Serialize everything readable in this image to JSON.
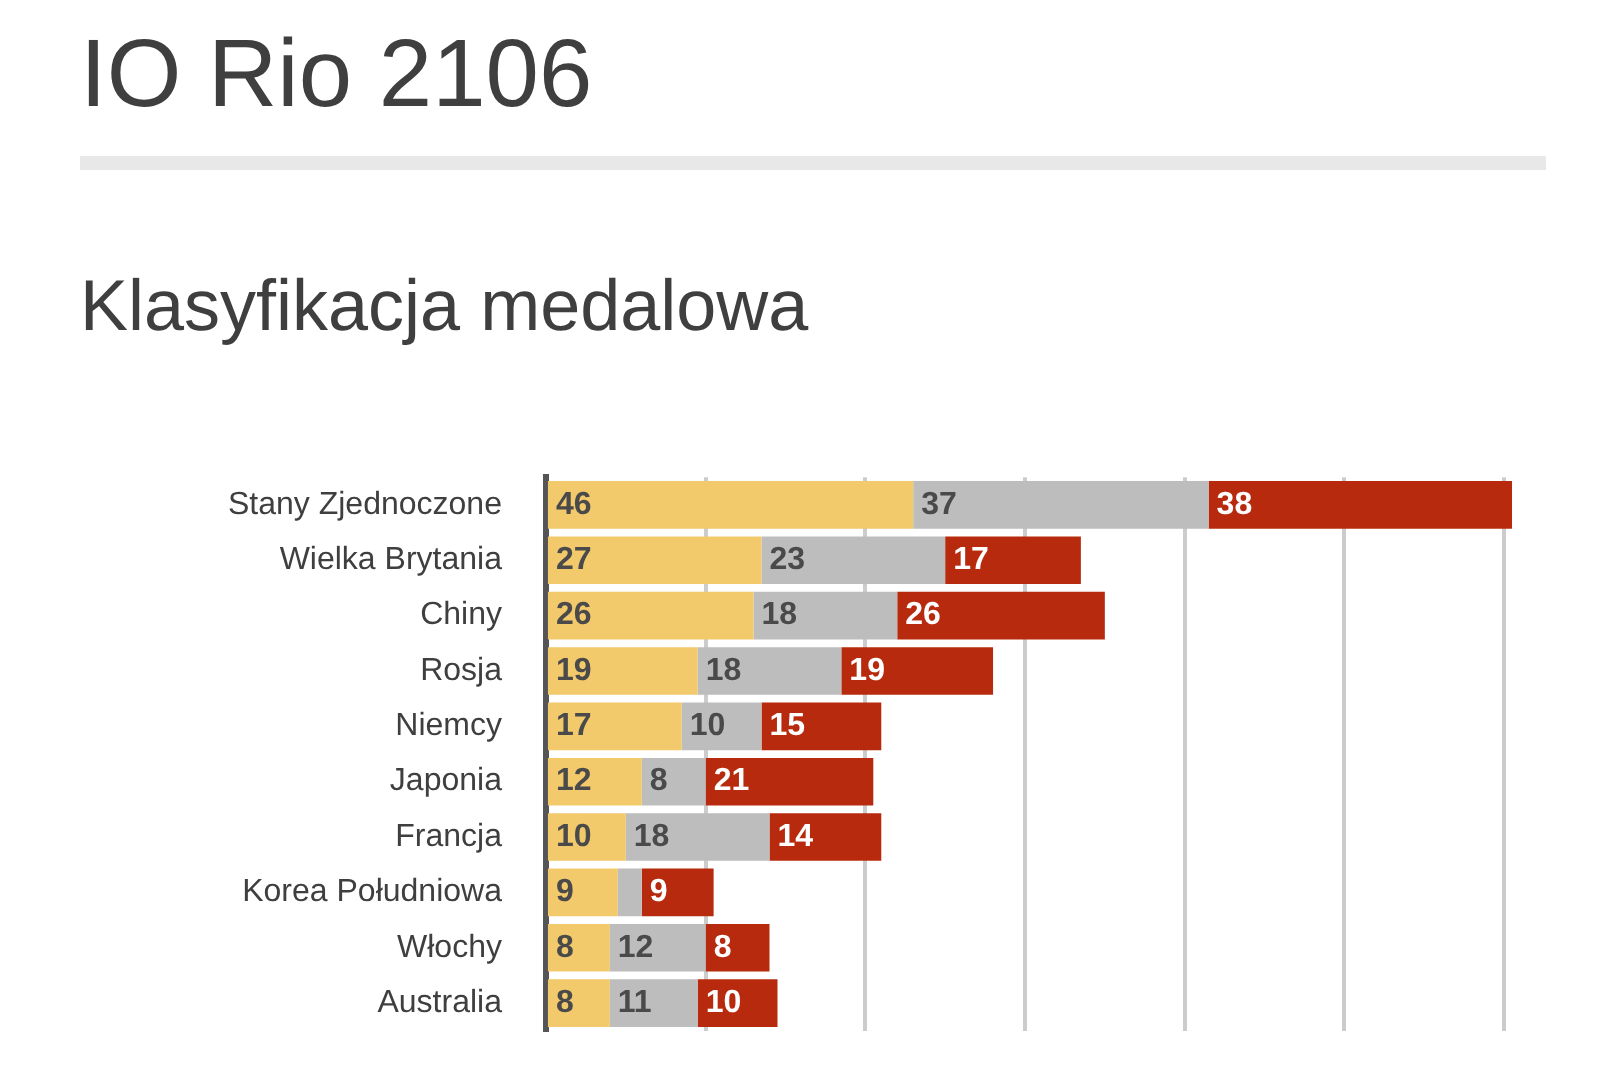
{
  "chart_data": {
    "type": "bar",
    "orientation": "horizontal",
    "stacked": true,
    "title": "IO Rio 2106",
    "subtitle": "Klasyfikacja medalowa",
    "categories": [
      "Stany Zjednoczone",
      "Wielka Brytania",
      "Chiny",
      "Rosja",
      "Niemcy",
      "Japonia",
      "Francja",
      "Korea Południowa",
      "Włochy",
      "Australia"
    ],
    "series": [
      {
        "color": "#f2c96b",
        "values": [
          46,
          27,
          26,
          19,
          17,
          12,
          10,
          9,
          8,
          8
        ],
        "value_labels": [
          "46",
          "27",
          "26",
          "19",
          "17",
          "12",
          "10",
          "9",
          "8",
          "8"
        ]
      },
      {
        "color": "#bdbdbd",
        "values": [
          37,
          23,
          18,
          18,
          10,
          8,
          18,
          3,
          12,
          11
        ],
        "value_labels": [
          "37",
          "23",
          "18",
          "18",
          "10",
          "8",
          "18",
          null,
          "12",
          "11"
        ]
      },
      {
        "color": "#b82a0e",
        "values": [
          38,
          17,
          26,
          19,
          15,
          21,
          14,
          9,
          8,
          10
        ],
        "value_labels": [
          "38",
          "17",
          "26",
          "19",
          "15",
          "21",
          "14",
          "9",
          "8",
          "10"
        ]
      }
    ],
    "xlim": [
      0,
      122
    ],
    "xticks": [
      {
        "value": 0,
        "label": null
      },
      {
        "value": 20,
        "label": null
      },
      {
        "value": 40,
        "label": null
      },
      {
        "value": 60,
        "label": null
      },
      {
        "value": 80,
        "label": null
      },
      {
        "value": 100,
        "label": null
      },
      {
        "value": 120,
        "label": null
      }
    ],
    "grid": "x",
    "tick_labels": "y",
    "legend": false
  }
}
